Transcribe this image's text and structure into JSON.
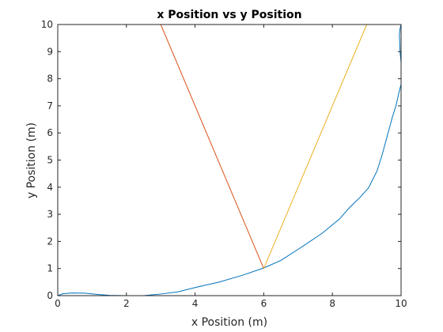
{
  "chart_data": {
    "type": "line",
    "title": "x Position vs y Position",
    "xlabel": "x Position (m)",
    "ylabel": "y Position (m)",
    "xlim": [
      0,
      10
    ],
    "ylim": [
      0,
      10
    ],
    "xticks": [
      0,
      2,
      4,
      6,
      8,
      10
    ],
    "yticks": [
      0,
      1,
      2,
      3,
      4,
      5,
      6,
      7,
      8,
      9,
      10
    ],
    "grid": false,
    "series": [
      {
        "color": "#0072BD",
        "x": [
          0,
          0.15,
          0.4,
          0.8,
          1.1,
          1.5,
          2.0,
          2.5,
          3.0,
          3.5,
          4.0,
          4.7,
          5.4,
          6.0,
          6.5,
          7.15,
          7.7,
          8.2,
          8.5,
          8.8,
          9.05,
          9.3,
          9.45,
          9.6,
          9.75,
          9.85,
          9.95,
          10.0,
          10.0,
          9.97,
          9.95,
          9.97,
          10.0
        ],
        "y": [
          0,
          0.07,
          0.1,
          0.09,
          0.05,
          0.01,
          0.0,
          0.0,
          0.06,
          0.14,
          0.3,
          0.5,
          0.76,
          1.02,
          1.3,
          1.83,
          2.3,
          2.82,
          3.25,
          3.62,
          3.97,
          4.6,
          5.2,
          5.9,
          6.6,
          7.0,
          7.55,
          7.8,
          8.6,
          9.0,
          9.6,
          9.85,
          10.0
        ]
      },
      {
        "color": "#D95319",
        "x": [
          3.0,
          6.0
        ],
        "y": [
          10.0,
          1.0
        ]
      },
      {
        "color": "#EDB120",
        "x": [
          6.0,
          9.0
        ],
        "y": [
          1.0,
          10.0
        ]
      }
    ]
  }
}
